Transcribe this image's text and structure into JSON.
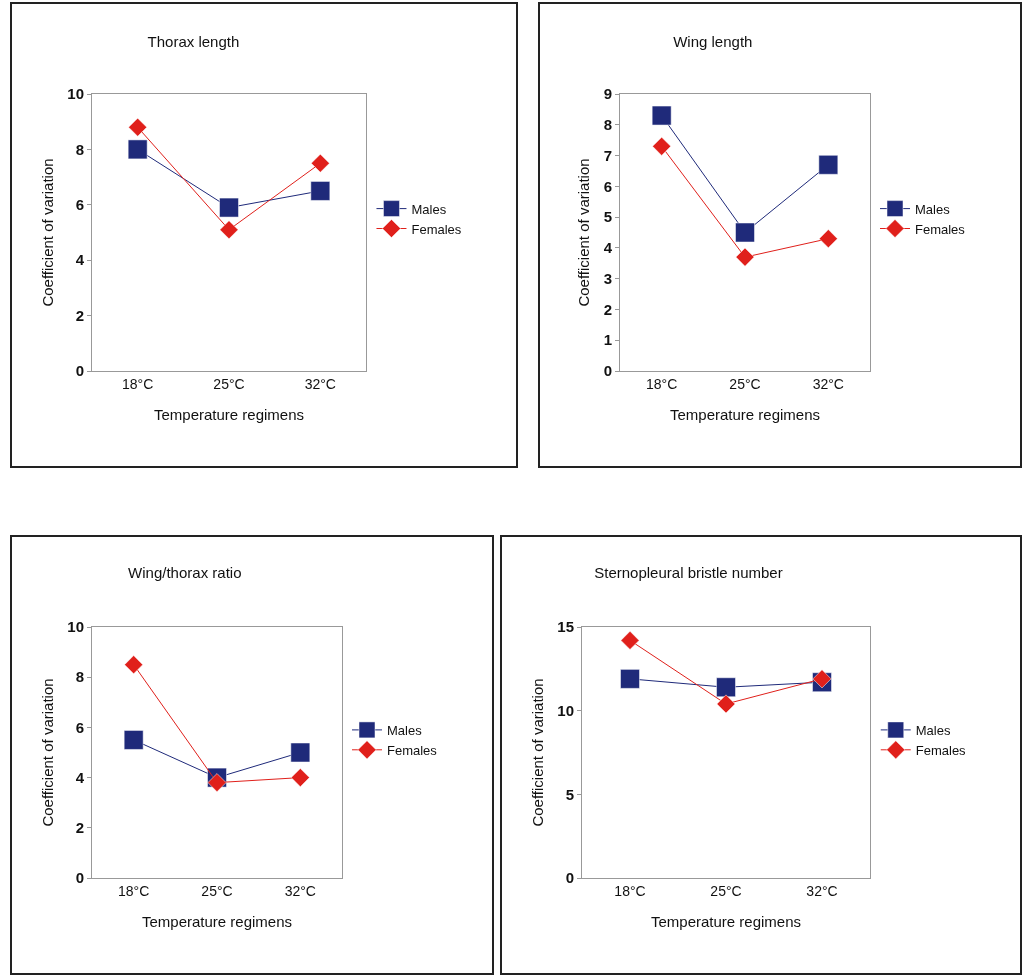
{
  "chart_data": [
    {
      "type": "line",
      "title": "Thorax length",
      "xlabel": "Temperature regimens",
      "ylabel": "Coefficient of variation",
      "categories": [
        "18°C",
        "25°C",
        "32°C"
      ],
      "ylim": [
        0,
        10
      ],
      "yticks": [
        0,
        2,
        4,
        6,
        8,
        10
      ],
      "grid": false,
      "legend": "right",
      "series": [
        {
          "name": "Males",
          "color": "#1f2a7a",
          "marker": "square",
          "values": [
            8.0,
            5.9,
            6.5
          ]
        },
        {
          "name": "Females",
          "color": "#e0201b",
          "marker": "diamond",
          "values": [
            8.8,
            5.1,
            7.5
          ]
        }
      ]
    },
    {
      "type": "line",
      "title": "Wing length",
      "xlabel": "Temperature regimens",
      "ylabel": "Coefficient of variation",
      "categories": [
        "18°C",
        "25°C",
        "32°C"
      ],
      "ylim": [
        0,
        9
      ],
      "yticks": [
        0,
        1,
        2,
        3,
        4,
        5,
        6,
        7,
        8,
        9
      ],
      "grid": false,
      "legend": "right",
      "series": [
        {
          "name": "Males",
          "color": "#1f2a7a",
          "marker": "square",
          "values": [
            8.3,
            4.5,
            6.7
          ]
        },
        {
          "name": "Females",
          "color": "#e0201b",
          "marker": "diamond",
          "values": [
            7.3,
            3.7,
            4.3
          ]
        }
      ]
    },
    {
      "type": "line",
      "title": "Wing/thorax ratio",
      "xlabel": "Temperature regimens",
      "ylabel": "Coefficient of variation",
      "categories": [
        "18°C",
        "25°C",
        "32°C"
      ],
      "ylim": [
        0,
        10
      ],
      "yticks": [
        0,
        2,
        4,
        6,
        8,
        10
      ],
      "grid": false,
      "legend": "right",
      "series": [
        {
          "name": "Males",
          "color": "#1f2a7a",
          "marker": "square",
          "values": [
            5.5,
            4.0,
            5.0
          ]
        },
        {
          "name": "Females",
          "color": "#e0201b",
          "marker": "diamond",
          "values": [
            8.5,
            3.8,
            4.0
          ]
        }
      ]
    },
    {
      "type": "line",
      "title": "Sternopleural bristle number",
      "xlabel": "Temperature regimens",
      "ylabel": "Coefficient of variation",
      "categories": [
        "18°C",
        "25°C",
        "32°C"
      ],
      "ylim": [
        0,
        15
      ],
      "yticks": [
        0,
        5,
        10,
        15
      ],
      "grid": false,
      "legend": "right",
      "series": [
        {
          "name": "Males",
          "color": "#1f2a7a",
          "marker": "square",
          "values": [
            11.9,
            11.4,
            11.7
          ]
        },
        {
          "name": "Females",
          "color": "#e0201b",
          "marker": "diamond",
          "values": [
            14.2,
            10.4,
            11.9
          ]
        }
      ]
    }
  ]
}
